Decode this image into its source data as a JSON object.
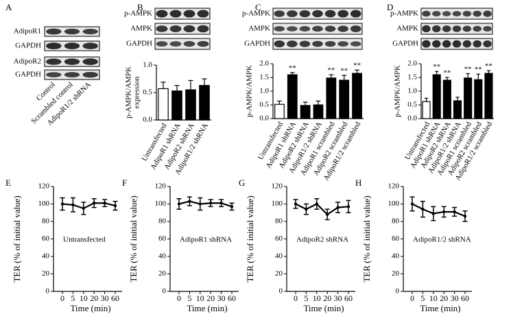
{
  "panel_a": {
    "letter": "A",
    "blot_labels": [
      "AdipoR1",
      "GAPDH",
      "AdipoR2",
      "GAPDH"
    ],
    "lanes": [
      "Control",
      "Scrambled control",
      "AdipoR1/2 shRNA"
    ]
  },
  "chart_data": [
    {
      "type": "bar",
      "panel": "B",
      "blot_labels": [
        "p-AMPK",
        "AMPK",
        "GAPDH"
      ],
      "ylabel": [
        "p-AMPK/AMPK",
        "expression"
      ],
      "categories": [
        "Untransfected",
        "AdipoR1 shRNA",
        "AdipoR2 shRNA",
        "AdipoR1/2 shRNA"
      ],
      "values": [
        0.57,
        0.53,
        0.55,
        0.63
      ],
      "errors": [
        0.12,
        0.1,
        0.17,
        0.12
      ],
      "colors": [
        "#ffffff",
        "#000000",
        "#000000",
        "#000000"
      ],
      "ylim": [
        0,
        1
      ],
      "yticks": [
        {
          "value": 0,
          "label": "0.0"
        },
        0.5,
        {
          "value": 1,
          "label": "1.0"
        }
      ]
    },
    {
      "type": "bar",
      "panel": "C",
      "blot_labels": [
        "p-AMPK",
        "AMPK",
        "GAPDH"
      ],
      "ylabel": [
        "p-AMPK/AMPK"
      ],
      "categories": [
        "Untransfected",
        "AdipoR1 shRNA",
        "AdipoR2 shRNA",
        "AdipoR1/2 shRNA",
        "AdipoR1 scrambled",
        "AdipoR2 scrambled",
        "AdipoR1/2 scrambled"
      ],
      "values": [
        0.52,
        1.6,
        0.48,
        0.5,
        1.48,
        1.4,
        1.65
      ],
      "errors": [
        0.12,
        0.08,
        0.12,
        0.14,
        0.12,
        0.18,
        0.12
      ],
      "colors": [
        "#ffffff",
        "#000000",
        "#000000",
        "#000000",
        "#000000",
        "#000000",
        "#000000"
      ],
      "annotations": [
        null,
        "**",
        null,
        null,
        "**",
        "**",
        "**"
      ],
      "ylim": [
        0,
        2
      ],
      "yticks": [
        {
          "value": 0,
          "label": "0.0"
        },
        0.5,
        {
          "value": 1,
          "label": "1.0"
        },
        1.5,
        {
          "value": 2,
          "label": "2.0"
        }
      ]
    },
    {
      "type": "bar",
      "panel": "D",
      "blot_labels": [
        "p-AMPK",
        "AMPK",
        "GAPDH"
      ],
      "ylabel": [
        "p-AMPK/AMPK"
      ],
      "categories": [
        "Untransfected",
        "AdipoR1 shRNA",
        "AdipoR2 shRNA",
        "AdipoR1/2 shRNA",
        "AdipoR1 scrambled",
        "AdipoR2 scrambled",
        "AdipoR1/2 scrambled"
      ],
      "values": [
        0.62,
        1.6,
        1.4,
        0.65,
        1.48,
        1.42,
        1.65
      ],
      "errors": [
        0.12,
        0.12,
        0.1,
        0.13,
        0.16,
        0.2,
        0.1
      ],
      "colors": [
        "#ffffff",
        "#000000",
        "#000000",
        "#000000",
        "#000000",
        "#000000",
        "#000000"
      ],
      "annotations": [
        null,
        "**",
        "**",
        null,
        "**",
        "**",
        "**"
      ],
      "ylim": [
        0,
        2
      ],
      "yticks": [
        {
          "value": 0,
          "label": "0.0"
        },
        0.5,
        {
          "value": 1,
          "label": "1.0"
        },
        1.5,
        {
          "value": 2,
          "label": "2.0"
        }
      ]
    },
    {
      "type": "line",
      "panel": "E",
      "annotation": "Untransfected",
      "ylabel": "TER (% of initial value)",
      "xlabel": "Time (min)",
      "categories": [
        "0",
        "5",
        "10",
        "20",
        "30",
        "60"
      ],
      "values": [
        100,
        99,
        95,
        101,
        101,
        98
      ],
      "errors": [
        7,
        8,
        7,
        5,
        4,
        5
      ],
      "color": "#000000",
      "ylim": [
        0,
        120
      ],
      "yticks": [
        0,
        20,
        40,
        60,
        80,
        100,
        120
      ]
    },
    {
      "type": "line",
      "panel": "F",
      "annotation": "AdipoR1 shRNA",
      "ylabel": "TER (% of initial value)",
      "xlabel": "Time (min)",
      "categories": [
        "0",
        "5",
        "10",
        "20",
        "30",
        "60"
      ],
      "values": [
        100,
        103,
        100,
        101,
        101,
        97
      ],
      "errors": [
        6,
        5,
        7,
        4,
        4,
        4
      ],
      "color": "#000000",
      "ylim": [
        0,
        120
      ],
      "yticks": [
        0,
        20,
        40,
        60,
        80,
        100,
        120
      ]
    },
    {
      "type": "line",
      "panel": "G",
      "annotation": "AdipoR2 shRNA",
      "ylabel": "TER (% of initial value)",
      "xlabel": "Time (min)",
      "categories": [
        "0",
        "5",
        "10",
        "20",
        "30",
        "60"
      ],
      "values": [
        100,
        94,
        100,
        88,
        96,
        97
      ],
      "errors": [
        5,
        6,
        6,
        6,
        6,
        7
      ],
      "color": "#000000",
      "ylim": [
        0,
        120
      ],
      "yticks": [
        0,
        20,
        40,
        60,
        80,
        100,
        120
      ]
    },
    {
      "type": "line",
      "panel": "H",
      "annotation": "AdipoR1/2 shRNA",
      "ylabel": "TER (% of initial value)",
      "xlabel": "Time (min)",
      "categories": [
        "0",
        "5",
        "10",
        "20",
        "30",
        "60"
      ],
      "values": [
        100,
        94,
        89,
        91,
        91,
        86
      ],
      "errors": [
        8,
        9,
        8,
        6,
        5,
        6
      ],
      "color": "#000000",
      "ylim": [
        0,
        120
      ],
      "yticks": [
        0,
        20,
        40,
        60,
        80,
        100,
        120
      ]
    }
  ]
}
